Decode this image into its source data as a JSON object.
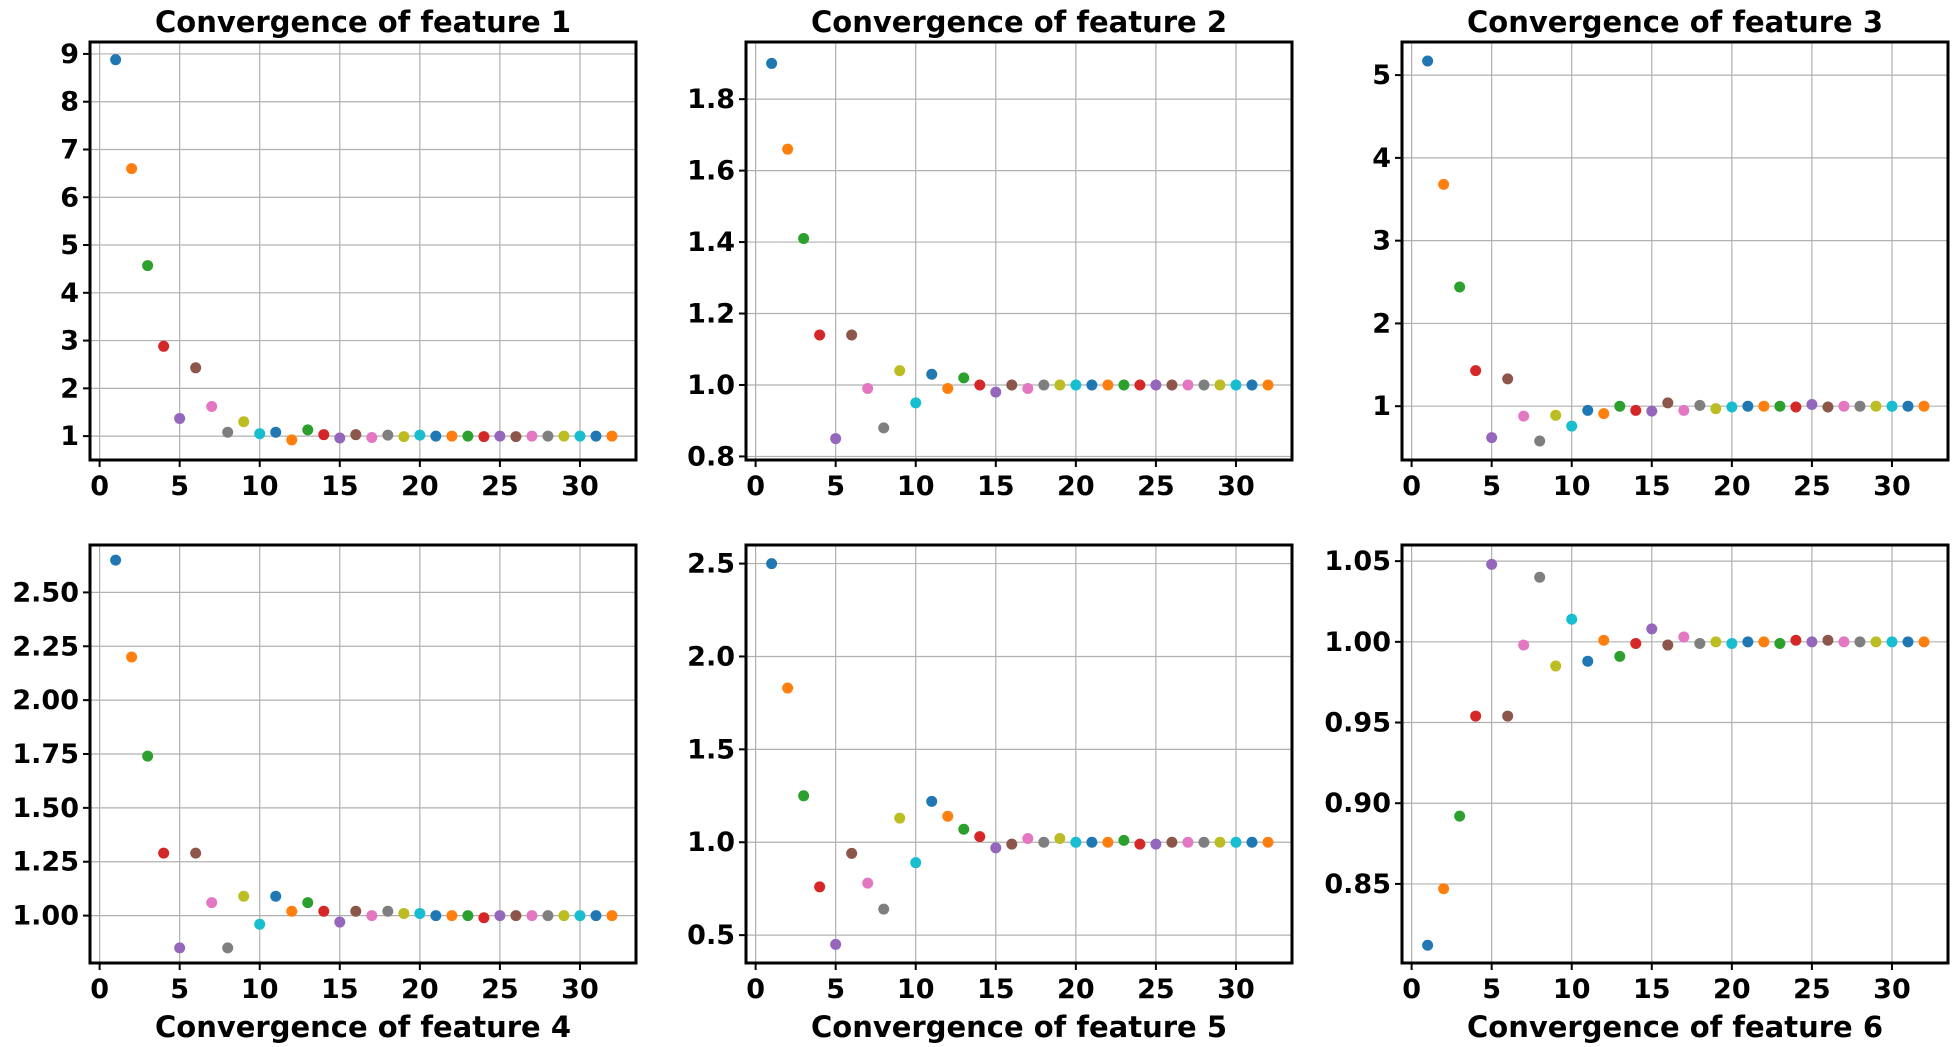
{
  "palette": [
    "#1f77b4",
    "#ff7f0e",
    "#2ca02c",
    "#d62728",
    "#9467bd",
    "#8c564b",
    "#e377c2",
    "#7f7f7f",
    "#bcbd22",
    "#17becf"
  ],
  "chart_data": [
    {
      "type": "scatter",
      "title": "Convergence of feature 1",
      "xlabel": "",
      "title_position": "top",
      "grid": true,
      "xlim": [
        -0.6,
        33.5
      ],
      "ylim": [
        0.5,
        9.25
      ],
      "xticks": [
        0,
        5,
        10,
        15,
        20,
        25,
        30
      ],
      "yticks": [
        1,
        2,
        3,
        4,
        5,
        6,
        7,
        8,
        9
      ],
      "tick_labels_x": [
        "0",
        "5",
        "10",
        "15",
        "20",
        "25",
        "30"
      ],
      "tick_labels_y": [
        "1",
        "2",
        "3",
        "4",
        "5",
        "6",
        "7",
        "8",
        "9"
      ],
      "x": [
        1,
        2,
        3,
        4,
        5,
        6,
        7,
        8,
        9,
        10,
        11,
        12,
        13,
        14,
        15,
        16,
        17,
        18,
        19,
        20,
        21,
        22,
        23,
        24,
        25,
        26,
        27,
        28,
        29,
        30,
        31,
        32
      ],
      "y": [
        8.88,
        6.6,
        4.57,
        2.88,
        1.37,
        2.43,
        1.62,
        1.08,
        1.3,
        1.05,
        1.08,
        0.92,
        1.13,
        1.03,
        0.96,
        1.03,
        0.97,
        1.02,
        0.99,
        1.02,
        1.0,
        1.0,
        1.0,
        0.99,
        1.0,
        0.99,
        1.0,
        1.0,
        1.0,
        1.0,
        1.0,
        1.0
      ]
    },
    {
      "type": "scatter",
      "title": "Convergence of feature 2",
      "xlabel": "",
      "title_position": "top",
      "grid": true,
      "xlim": [
        -0.6,
        33.5
      ],
      "ylim": [
        0.79,
        1.96
      ],
      "xticks": [
        0,
        5,
        10,
        15,
        20,
        25,
        30
      ],
      "yticks": [
        0.8,
        1.0,
        1.2,
        1.4,
        1.6,
        1.8
      ],
      "tick_labels_x": [
        "0",
        "5",
        "10",
        "15",
        "20",
        "25",
        "30"
      ],
      "tick_labels_y": [
        "0.8",
        "1.0",
        "1.2",
        "1.4",
        "1.6",
        "1.8"
      ],
      "x": [
        1,
        2,
        3,
        4,
        5,
        6,
        7,
        8,
        9,
        10,
        11,
        12,
        13,
        14,
        15,
        16,
        17,
        18,
        19,
        20,
        21,
        22,
        23,
        24,
        25,
        26,
        27,
        28,
        29,
        30,
        31,
        32
      ],
      "y": [
        1.9,
        1.66,
        1.41,
        1.14,
        0.85,
        1.14,
        0.99,
        0.88,
        1.04,
        0.95,
        1.03,
        0.99,
        1.02,
        1.0,
        0.98,
        1.0,
        0.99,
        1.0,
        1.0,
        1.0,
        1.0,
        1.0,
        1.0,
        1.0,
        1.0,
        1.0,
        1.0,
        1.0,
        1.0,
        1.0,
        1.0,
        1.0
      ]
    },
    {
      "type": "scatter",
      "title": "Convergence of feature 3",
      "xlabel": "",
      "title_position": "top",
      "grid": true,
      "xlim": [
        -0.6,
        33.5
      ],
      "ylim": [
        0.35,
        5.4
      ],
      "xticks": [
        0,
        5,
        10,
        15,
        20,
        25,
        30
      ],
      "yticks": [
        1,
        2,
        3,
        4,
        5
      ],
      "tick_labels_x": [
        "0",
        "5",
        "10",
        "15",
        "20",
        "25",
        "30"
      ],
      "tick_labels_y": [
        "1",
        "2",
        "3",
        "4",
        "5"
      ],
      "x": [
        1,
        2,
        3,
        4,
        5,
        6,
        7,
        8,
        9,
        10,
        11,
        12,
        13,
        14,
        15,
        16,
        17,
        18,
        19,
        20,
        21,
        22,
        23,
        24,
        25,
        26,
        27,
        28,
        29,
        30,
        31,
        32
      ],
      "y": [
        5.17,
        3.68,
        2.44,
        1.43,
        0.62,
        1.33,
        0.88,
        0.58,
        0.89,
        0.76,
        0.95,
        0.91,
        1.0,
        0.95,
        0.94,
        1.04,
        0.95,
        1.01,
        0.97,
        0.99,
        1.0,
        1.0,
        1.0,
        0.99,
        1.02,
        0.99,
        1.0,
        1.0,
        1.0,
        1.0,
        1.0,
        1.0
      ]
    },
    {
      "type": "scatter",
      "title": "",
      "xlabel": "Convergence of feature 4",
      "title_position": "bottom",
      "grid": true,
      "xlim": [
        -0.6,
        33.5
      ],
      "ylim": [
        0.78,
        2.72
      ],
      "xticks": [
        0,
        5,
        10,
        15,
        20,
        25,
        30
      ],
      "yticks": [
        1.0,
        1.25,
        1.5,
        1.75,
        2.0,
        2.25,
        2.5
      ],
      "tick_labels_x": [
        "0",
        "5",
        "10",
        "15",
        "20",
        "25",
        "30"
      ],
      "tick_labels_y": [
        "1.00",
        "1.25",
        "1.50",
        "1.75",
        "2.00",
        "2.25",
        "2.50"
      ],
      "x": [
        1,
        2,
        3,
        4,
        5,
        6,
        7,
        8,
        9,
        10,
        11,
        12,
        13,
        14,
        15,
        16,
        17,
        18,
        19,
        20,
        21,
        22,
        23,
        24,
        25,
        26,
        27,
        28,
        29,
        30,
        31,
        32
      ],
      "y": [
        2.65,
        2.2,
        1.74,
        1.29,
        0.85,
        1.29,
        1.06,
        0.85,
        1.09,
        0.96,
        1.09,
        1.02,
        1.06,
        1.02,
        0.97,
        1.02,
        1.0,
        1.02,
        1.01,
        1.01,
        1.0,
        1.0,
        1.0,
        0.99,
        1.0,
        1.0,
        1.0,
        1.0,
        1.0,
        1.0,
        1.0,
        1.0
      ]
    },
    {
      "type": "scatter",
      "title": "",
      "xlabel": "Convergence of feature 5",
      "title_position": "bottom",
      "grid": true,
      "xlim": [
        -0.6,
        33.5
      ],
      "ylim": [
        0.35,
        2.6
      ],
      "xticks": [
        0,
        5,
        10,
        15,
        20,
        25,
        30
      ],
      "yticks": [
        0.5,
        1.0,
        1.5,
        2.0,
        2.5
      ],
      "tick_labels_x": [
        "0",
        "5",
        "10",
        "15",
        "20",
        "25",
        "30"
      ],
      "tick_labels_y": [
        "0.5",
        "1.0",
        "1.5",
        "2.0",
        "2.5"
      ],
      "x": [
        1,
        2,
        3,
        4,
        5,
        6,
        7,
        8,
        9,
        10,
        11,
        12,
        13,
        14,
        15,
        16,
        17,
        18,
        19,
        20,
        21,
        22,
        23,
        24,
        25,
        26,
        27,
        28,
        29,
        30,
        31,
        32
      ],
      "y": [
        2.5,
        1.83,
        1.25,
        0.76,
        0.45,
        0.94,
        0.78,
        0.64,
        1.13,
        0.89,
        1.22,
        1.14,
        1.07,
        1.03,
        0.97,
        0.99,
        1.02,
        1.0,
        1.02,
        1.0,
        1.0,
        1.0,
        1.01,
        0.99,
        0.99,
        1.0,
        1.0,
        1.0,
        1.0,
        1.0,
        1.0,
        1.0
      ]
    },
    {
      "type": "scatter",
      "title": "",
      "xlabel": "Convergence of feature 6",
      "title_position": "bottom",
      "grid": true,
      "xlim": [
        -0.6,
        33.5
      ],
      "ylim": [
        0.801,
        1.06
      ],
      "xticks": [
        0,
        5,
        10,
        15,
        20,
        25,
        30
      ],
      "yticks": [
        0.85,
        0.9,
        0.95,
        1.0,
        1.05
      ],
      "tick_labels_x": [
        "0",
        "5",
        "10",
        "15",
        "20",
        "25",
        "30"
      ],
      "tick_labels_y": [
        "0.85",
        "0.90",
        "0.95",
        "1.00",
        "1.05"
      ],
      "x": [
        1,
        2,
        3,
        4,
        5,
        6,
        7,
        8,
        9,
        10,
        11,
        12,
        13,
        14,
        15,
        16,
        17,
        18,
        19,
        20,
        21,
        22,
        23,
        24,
        25,
        26,
        27,
        28,
        29,
        30,
        31,
        32
      ],
      "y": [
        0.812,
        0.847,
        0.892,
        0.954,
        1.048,
        0.954,
        0.998,
        1.04,
        0.985,
        1.014,
        0.988,
        1.001,
        0.991,
        0.999,
        1.008,
        0.998,
        1.003,
        0.999,
        1.0,
        0.999,
        1.0,
        1.0,
        0.999,
        1.001,
        1.0,
        1.001,
        1.0,
        1.0,
        1.0,
        1.0,
        1.0,
        1.0
      ]
    }
  ]
}
